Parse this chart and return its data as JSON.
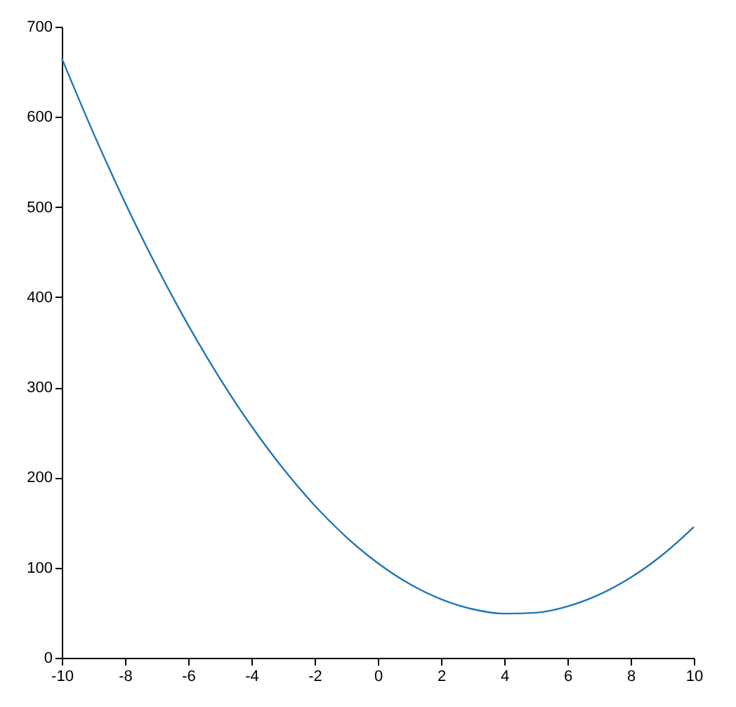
{
  "chart_data": {
    "type": "line",
    "x": [
      -10,
      -9,
      -8,
      -7,
      -6,
      -5,
      -4,
      -3,
      -2,
      -1,
      0,
      1,
      2,
      3,
      4,
      5,
      6,
      7,
      8,
      9,
      10
    ],
    "series": [
      {
        "color": "#1f77b4",
        "values": [
          665,
          582,
          505,
          434,
          369,
          310,
          257,
          210,
          169,
          134,
          105,
          82,
          65,
          54,
          49,
          50,
          57,
          70,
          89,
          114,
          145
        ]
      }
    ],
    "xlim": [
      -10,
      10
    ],
    "xticks": [
      -10,
      -8,
      -6,
      -4,
      -2,
      0,
      2,
      4,
      6,
      8,
      10
    ],
    "ylim": [
      0,
      700
    ],
    "yticks": [
      0,
      100,
      200,
      300,
      400,
      500,
      600,
      700
    ],
    "grid": false,
    "marker": "none",
    "line_style": "solid"
  }
}
